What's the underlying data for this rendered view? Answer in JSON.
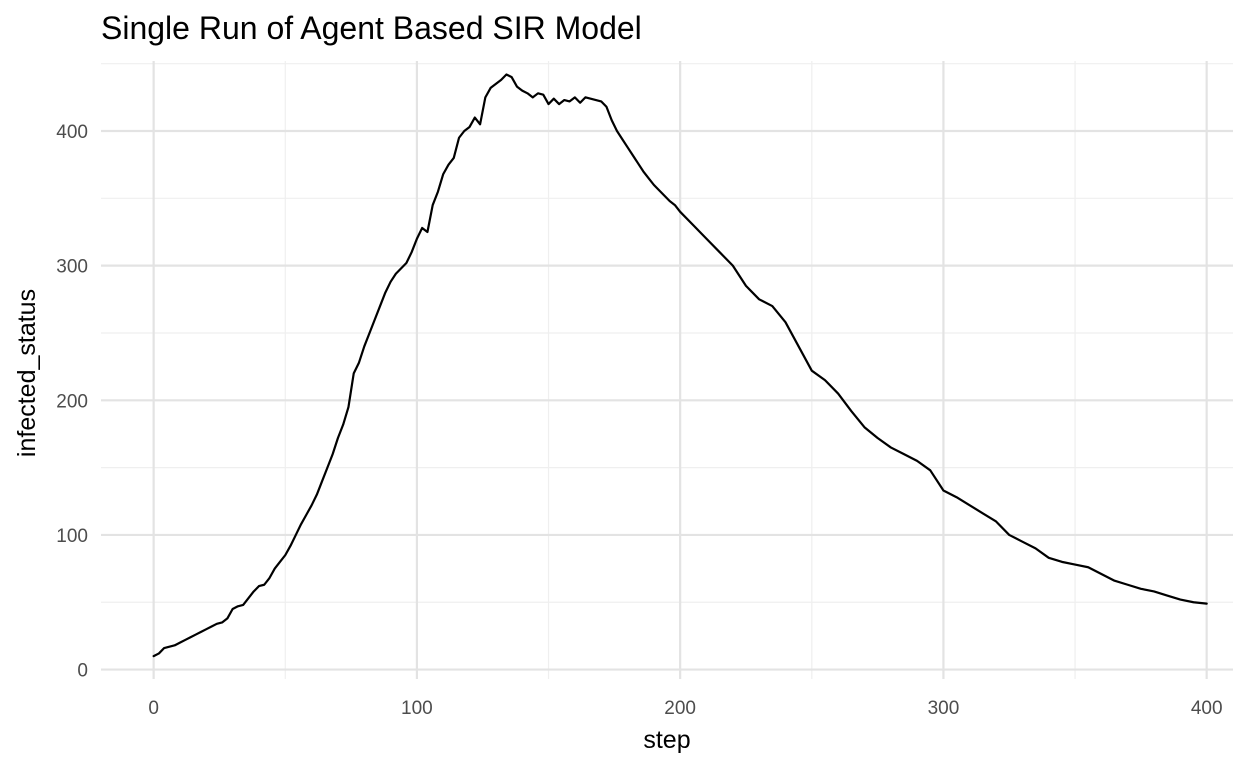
{
  "chart_data": {
    "type": "line",
    "title": "Single Run of Agent Based SIR Model",
    "xlabel": "step",
    "ylabel": "infected_status",
    "xlim": [
      -20,
      410
    ],
    "ylim": [
      -7,
      452
    ],
    "x_ticks": [
      0,
      100,
      200,
      300,
      400
    ],
    "y_ticks": [
      0,
      100,
      200,
      300,
      400
    ],
    "grid": true,
    "legend": "none",
    "line_color": "#000000",
    "series": [
      {
        "x": [
          0,
          2,
          4,
          6,
          8,
          10,
          12,
          14,
          16,
          18,
          20,
          22,
          24,
          26,
          28,
          30,
          32,
          34,
          36,
          38,
          40,
          42,
          44,
          46,
          48,
          50,
          52,
          54,
          56,
          58,
          60,
          62,
          64,
          66,
          68,
          70,
          72,
          74,
          76,
          78,
          80,
          82,
          84,
          86,
          88,
          90,
          92,
          94,
          96,
          98,
          100,
          102,
          104,
          106,
          108,
          110,
          112,
          114,
          116,
          118,
          120,
          122,
          124,
          126,
          128,
          130,
          132,
          134,
          136,
          138,
          140,
          142,
          144,
          146,
          148,
          150,
          152,
          154,
          156,
          158,
          160,
          162,
          164,
          166,
          168,
          170,
          172,
          174,
          176,
          178,
          180,
          182,
          184,
          186,
          188,
          190,
          192,
          194,
          196,
          198,
          200,
          205,
          210,
          215,
          220,
          225,
          230,
          235,
          240,
          245,
          250,
          255,
          260,
          265,
          270,
          275,
          280,
          285,
          290,
          295,
          300,
          305,
          310,
          315,
          320,
          325,
          330,
          335,
          340,
          345,
          350,
          355,
          360,
          365,
          370,
          375,
          380,
          385,
          390,
          395,
          400
        ],
        "y": [
          10,
          12,
          16,
          17,
          18,
          20,
          22,
          24,
          26,
          28,
          30,
          32,
          34,
          35,
          38,
          45,
          47,
          48,
          53,
          58,
          62,
          63,
          68,
          75,
          80,
          85,
          92,
          100,
          108,
          115,
          122,
          130,
          140,
          150,
          160,
          172,
          182,
          195,
          220,
          228,
          240,
          250,
          260,
          270,
          280,
          288,
          294,
          298,
          302,
          310,
          320,
          328,
          325,
          345,
          355,
          368,
          375,
          380,
          395,
          400,
          403,
          410,
          405,
          425,
          432,
          435,
          438,
          442,
          440,
          433,
          430,
          428,
          425,
          428,
          427,
          420,
          424,
          420,
          423,
          422,
          425,
          421,
          425,
          424,
          423,
          422,
          418,
          408,
          400,
          394,
          388,
          382,
          376,
          370,
          365,
          360,
          356,
          352,
          348,
          345,
          340,
          330,
          320,
          310,
          300,
          285,
          275,
          270,
          258,
          240,
          222,
          215,
          205,
          192,
          180,
          172,
          165,
          160,
          155,
          148,
          133,
          128,
          122,
          116,
          110,
          100,
          95,
          90,
          83,
          80,
          78,
          76,
          71,
          66,
          63,
          60,
          58,
          55,
          52,
          50,
          49
        ]
      }
    ]
  }
}
